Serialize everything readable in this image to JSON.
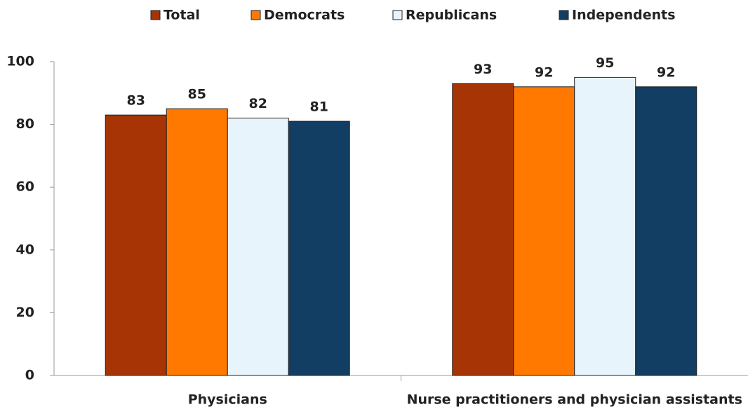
{
  "chart_data": {
    "type": "bar",
    "categories": [
      "Physicians",
      "Nurse practitioners and physician assistants"
    ],
    "series": [
      {
        "name": "Total",
        "color": "#a63405",
        "values": [
          83,
          93
        ]
      },
      {
        "name": "Democrats",
        "color": "#ff7900",
        "values": [
          85,
          92
        ]
      },
      {
        "name": "Republicans",
        "color": "#e8f4fb",
        "values": [
          82,
          95
        ]
      },
      {
        "name": "Independents",
        "color": "#123e63",
        "values": [
          81,
          92
        ]
      }
    ],
    "ylim": [
      0,
      100
    ],
    "yticks": [
      0,
      20,
      40,
      60,
      80,
      100
    ],
    "grid": false,
    "legend": "top"
  }
}
